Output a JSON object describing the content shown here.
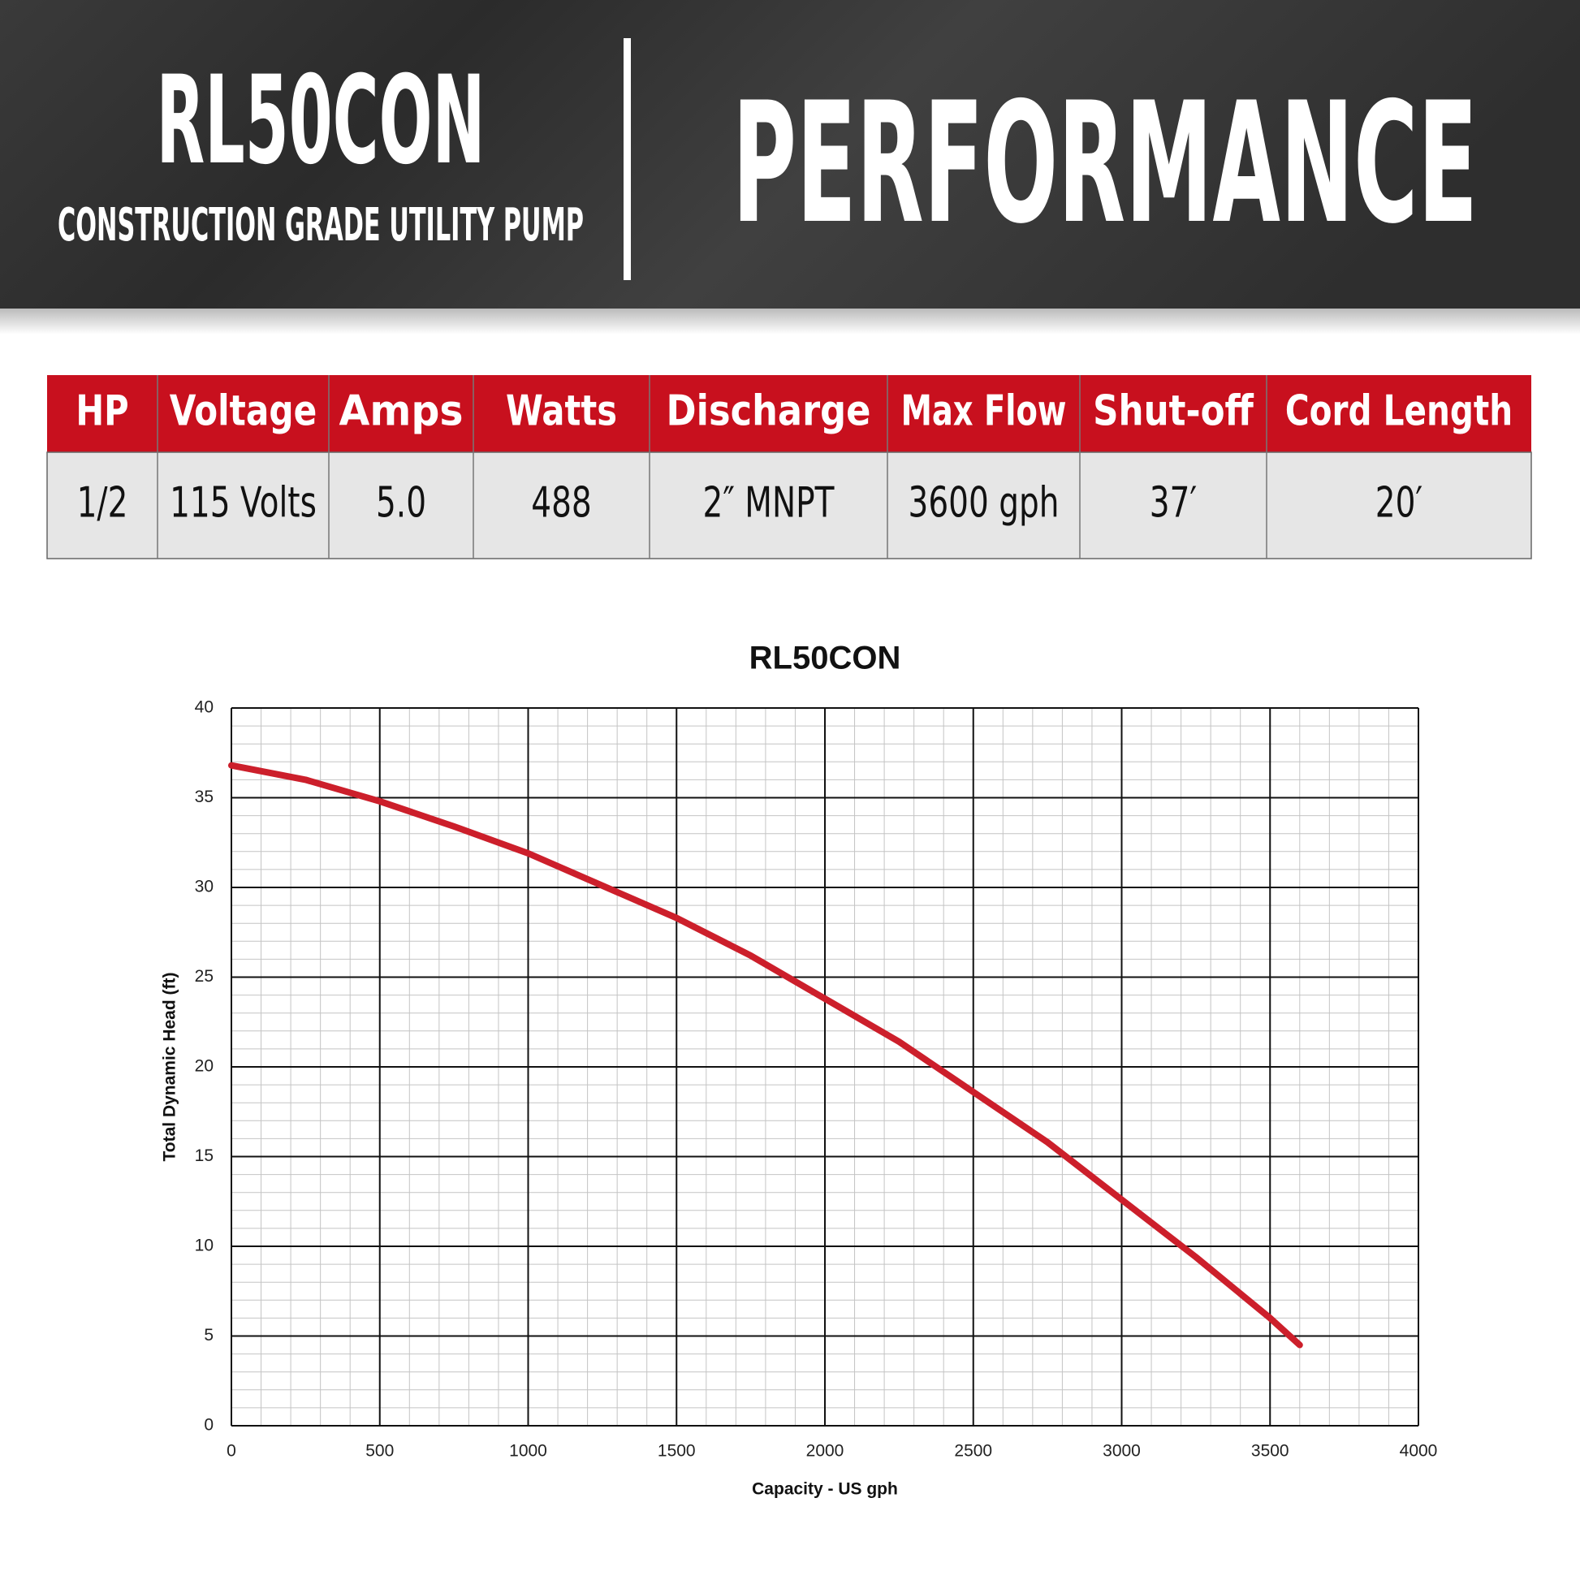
{
  "header": {
    "model": "RL50CON",
    "subtitle": "CONSTRUCTION GRADE UTILITY PUMP",
    "title": "PERFORMANCE"
  },
  "table": {
    "columns": [
      "HP",
      "Voltage",
      "Amps",
      "Watts",
      "Discharge",
      "Max Flow",
      "Shut-off",
      "Cord Length"
    ],
    "rows": [
      [
        "1/2",
        "115 Volts",
        "5.0",
        "488",
        "2″ MNPT",
        "3600 gph",
        "37′",
        "20′"
      ]
    ]
  },
  "chart_data": {
    "type": "line",
    "title": "RL50CON",
    "x_label": "Capacity - US gph",
    "y_label": "Total Dynamic Head (ft)",
    "x": [
      0,
      250,
      500,
      750,
      1000,
      1250,
      1500,
      1750,
      2000,
      2250,
      2500,
      2750,
      3000,
      3250,
      3500,
      3600
    ],
    "series": [
      {
        "color": "#cc1f2b",
        "values": [
          36.8,
          36.0,
          34.8,
          33.4,
          31.9,
          30.1,
          28.3,
          26.2,
          23.8,
          21.4,
          18.6,
          15.8,
          12.6,
          9.4,
          6.0,
          4.5
        ]
      }
    ],
    "xlim": [
      0,
      4000
    ],
    "xticks": [
      0,
      500,
      1000,
      1500,
      2000,
      2500,
      3000,
      3500,
      4000
    ],
    "ylim": [
      0,
      40
    ],
    "yticks": [
      0,
      5,
      10,
      15,
      20,
      25,
      30,
      35,
      40
    ],
    "grid": true
  }
}
